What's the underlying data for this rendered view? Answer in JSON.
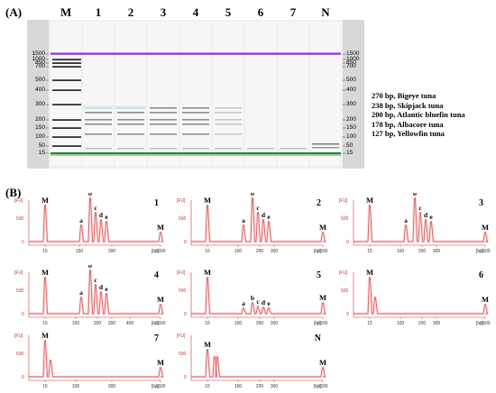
{
  "panel_a": {
    "label": "(A)",
    "lanes": [
      "M",
      "1",
      "2",
      "3",
      "4",
      "5",
      "6",
      "7",
      "N"
    ],
    "ladder": [
      "1500",
      "1000",
      "850",
      "700",
      "500",
      "400",
      "300",
      "200",
      "150",
      "100",
      "50",
      "15"
    ],
    "legend": [
      "270 bp, Bigeye tuna",
      "238 bp, Skipjack tuna",
      "200 bp, Atlantic bluefin tuna",
      "178 bp, Albacore tuna",
      "127 bp, Yellowfin tuna"
    ],
    "colors": {
      "upper_marker": "#8a2be2",
      "lower_marker": "#1a8a2a",
      "gel_bg": "#f0f0f0"
    }
  },
  "panel_b": {
    "label": "(B)",
    "y_unit": "[FU]",
    "x_unit": "[bp]",
    "y_ticks": [
      "500",
      "0"
    ],
    "peak_color": "#cc2222",
    "plots": [
      {
        "id": "1",
        "marker_label": "M",
        "peak_letters": [
          "a",
          "b",
          "c",
          "d",
          "e"
        ],
        "x_ticks": [
          "15",
          "150",
          "300",
          "1500"
        ]
      },
      {
        "id": "2",
        "marker_label": "M",
        "peak_letters": [
          "a",
          "b",
          "c",
          "d",
          "e"
        ],
        "x_ticks": [
          "15",
          "100",
          "200",
          "300",
          "1500"
        ]
      },
      {
        "id": "3",
        "marker_label": "M",
        "peak_letters": [
          "a",
          "b",
          "c",
          "d",
          "e"
        ],
        "x_ticks": [
          "15",
          "100",
          "200",
          "300",
          "1500"
        ]
      },
      {
        "id": "4",
        "marker_label": "M",
        "peak_letters": [
          "a",
          "b",
          "c",
          "d",
          "e"
        ],
        "x_ticks": [
          "15",
          "100",
          "200",
          "300",
          "400",
          "1500"
        ]
      },
      {
        "id": "5",
        "marker_label": "M",
        "peak_letters": [
          "a",
          "b",
          "c",
          "d",
          "e"
        ],
        "x_ticks": [
          "15",
          "100",
          "200",
          "300",
          "1500"
        ]
      },
      {
        "id": "6",
        "marker_label": "M",
        "peak_letters": [],
        "x_ticks": [
          "15",
          "100",
          "200",
          "300",
          "1500"
        ]
      },
      {
        "id": "7",
        "marker_label": "M",
        "peak_letters": [],
        "x_ticks": [
          "15",
          "100",
          "300",
          "1500"
        ]
      },
      {
        "id": "N",
        "marker_label": "M",
        "peak_letters": [],
        "x_ticks": [
          "15",
          "100",
          "200",
          "300",
          "1500"
        ]
      }
    ]
  }
}
